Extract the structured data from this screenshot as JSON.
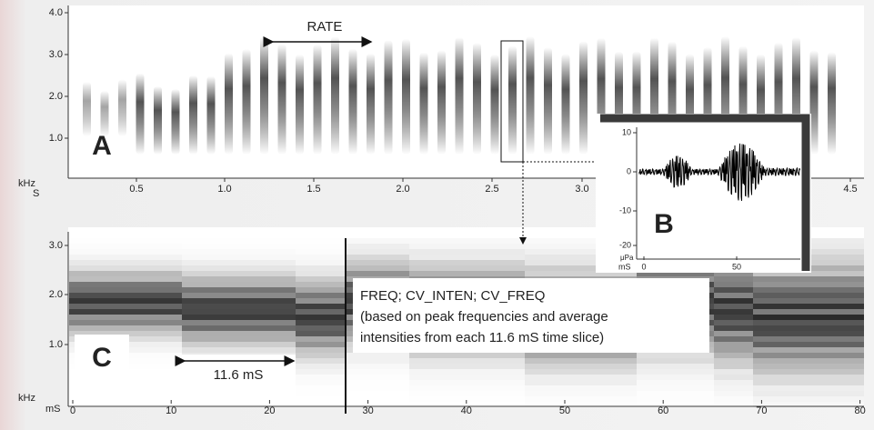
{
  "panel_a": {
    "label": "A",
    "annotation": "RATE",
    "y_unit": "kHz",
    "x_unit": "S",
    "yticks": [
      "1.0",
      "2.0",
      "3.0",
      "4.0"
    ],
    "xticks": [
      "0.5",
      "1.0",
      "1.5",
      "2.0",
      "2.5",
      "3.0",
      "4.5"
    ]
  },
  "panel_b": {
    "label": "B",
    "y_unit": "μPa",
    "x_unit": "mS",
    "yticks": [
      10,
      0,
      -10,
      -20
    ],
    "xticks": [
      0,
      50
    ]
  },
  "panel_c": {
    "label": "C",
    "y_unit": "kHz",
    "x_unit": "mS",
    "yticks": [
      "1.0",
      "2.0",
      "3.0"
    ],
    "xticks": [
      0,
      10,
      20,
      30,
      40,
      50,
      60,
      70,
      80
    ],
    "slice_label": "11.6 mS",
    "note": [
      "FREQ; CV_INTEN; CV_FREQ",
      "(based on peak frequencies and average",
      "intensities from each 11.6 mS time slice)"
    ]
  }
}
